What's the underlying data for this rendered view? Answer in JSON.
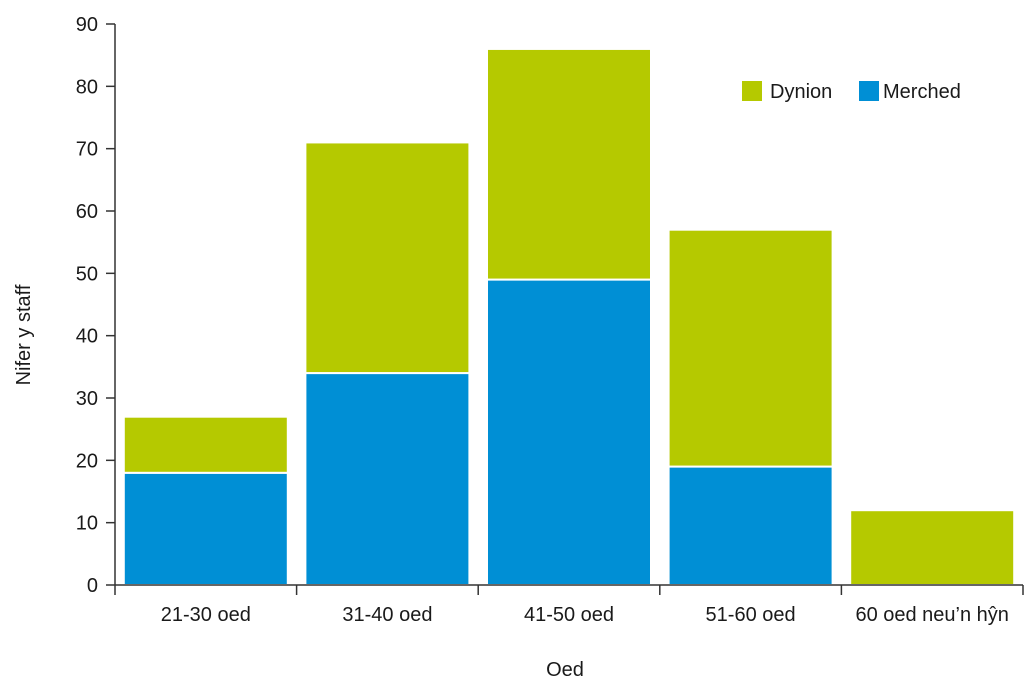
{
  "chart_data": {
    "type": "bar",
    "stacked": true,
    "title": "",
    "xlabel": "Oed",
    "ylabel": "Nifer y staff",
    "categories": [
      "21-30 oed",
      "31-40 oed",
      "41-50 oed",
      "51-60 oed",
      "60 oed neu’n hŷn"
    ],
    "series": [
      {
        "name": "Merched",
        "color": "#008fd5",
        "values": [
          18,
          34,
          49,
          19,
          0
        ]
      },
      {
        "name": "Dynion",
        "color": "#b5c900",
        "values": [
          9,
          37,
          37,
          38,
          12
        ]
      }
    ],
    "ylim": [
      0,
      90
    ],
    "yticks": [
      0,
      10,
      20,
      30,
      40,
      50,
      60,
      70,
      80,
      90
    ],
    "grid": false,
    "legend": {
      "position": "top-right",
      "order": [
        "Dynion",
        "Merched"
      ]
    },
    "axis_color": "#333333"
  }
}
